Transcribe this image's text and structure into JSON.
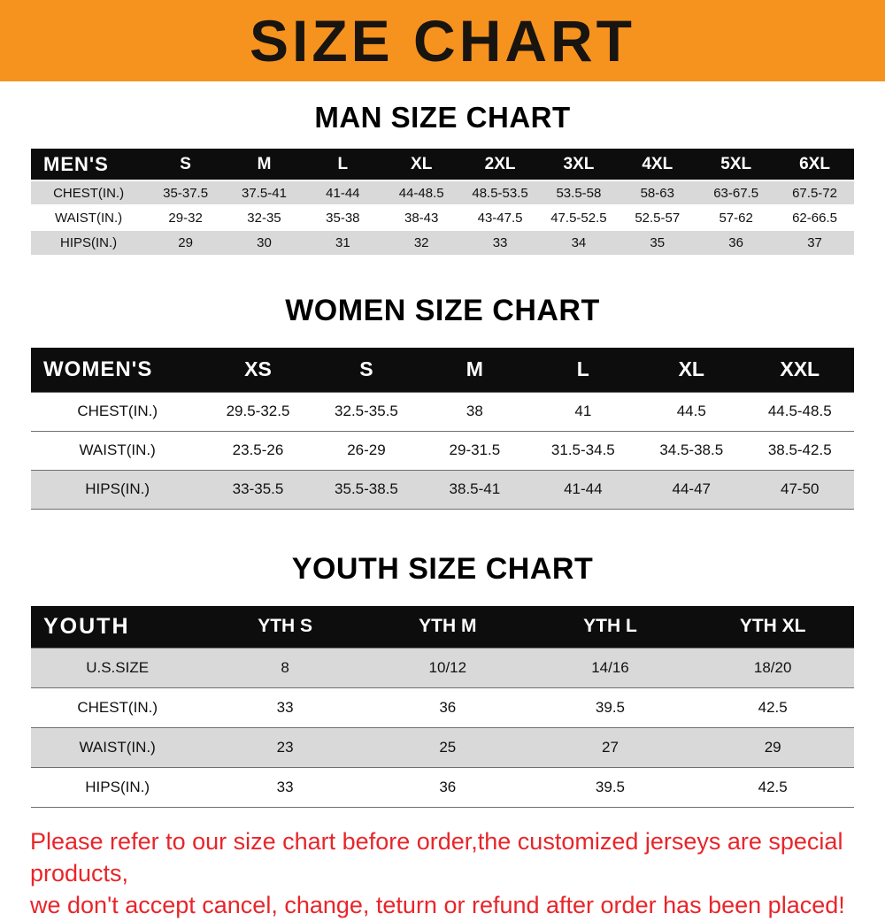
{
  "banner": {
    "title": "SIZE CHART",
    "bg_color": "#f6921e"
  },
  "chart_data": [
    {
      "type": "table",
      "title": "MAN SIZE CHART",
      "columns": [
        "MEN'S",
        "S",
        "M",
        "L",
        "XL",
        "2XL",
        "3XL",
        "4XL",
        "5XL",
        "6XL"
      ],
      "rows": [
        [
          "CHEST(IN.)",
          "35-37.5",
          "37.5-41",
          "41-44",
          "44-48.5",
          "48.5-53.5",
          "53.5-58",
          "58-63",
          "63-67.5",
          "67.5-72"
        ],
        [
          "WAIST(IN.)",
          "29-32",
          "32-35",
          "35-38",
          "38-43",
          "43-47.5",
          "47.5-52.5",
          "52.5-57",
          "57-62",
          "62-66.5"
        ],
        [
          "HIPS(IN.)",
          "29",
          "30",
          "31",
          "32",
          "33",
          "34",
          "35",
          "36",
          "37"
        ]
      ]
    },
    {
      "type": "table",
      "title": "WOMEN SIZE CHART",
      "columns": [
        "WOMEN'S",
        "XS",
        "S",
        "M",
        "L",
        "XL",
        "XXL"
      ],
      "rows": [
        [
          "CHEST(IN.)",
          "29.5-32.5",
          "32.5-35.5",
          "38",
          "41",
          "44.5",
          "44.5-48.5"
        ],
        [
          "WAIST(IN.)",
          "23.5-26",
          "26-29",
          "29-31.5",
          "31.5-34.5",
          "34.5-38.5",
          "38.5-42.5"
        ],
        [
          "HIPS(IN.)",
          "33-35.5",
          "35.5-38.5",
          "38.5-41",
          "41-44",
          "44-47",
          "47-50"
        ]
      ]
    },
    {
      "type": "table",
      "title": "YOUTH SIZE CHART",
      "columns": [
        "YOUTH",
        "YTH S",
        "YTH M",
        "YTH L",
        "YTH XL"
      ],
      "rows": [
        [
          "U.S.SIZE",
          "8",
          "10/12",
          "14/16",
          "18/20"
        ],
        [
          "CHEST(IN.)",
          "33",
          "36",
          "39.5",
          "42.5"
        ],
        [
          "WAIST(IN.)",
          "23",
          "25",
          "27",
          "29"
        ],
        [
          "HIPS(IN.)",
          "33",
          "36",
          "39.5",
          "42.5"
        ]
      ]
    }
  ],
  "footer": {
    "line1": "Please refer to our size chart before order,the customized jerseys are special products,",
    "line2": "we don't accept cancel, change, teturn or refund after order has been placed!",
    "color": "#e8252a"
  }
}
